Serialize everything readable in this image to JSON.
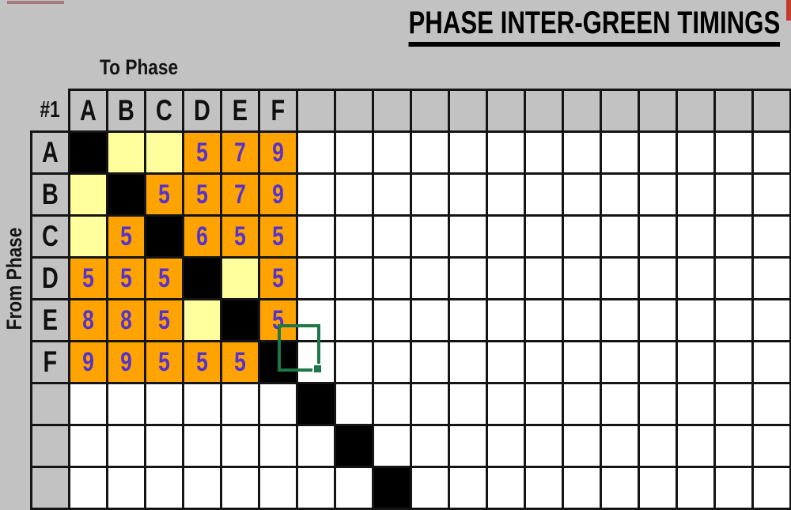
{
  "header": {
    "title": "PHASE INTER-GREEN TIMINGS"
  },
  "labels": {
    "to_phase": "To Phase",
    "from_phase": "From Phase",
    "corner": "#1"
  },
  "phases": [
    "A",
    "B",
    "C",
    "D",
    "E",
    "F"
  ],
  "grid": {
    "data_columns": 21,
    "data_rows": 9
  },
  "matrix": {
    "cell_codes": {
      "X": "same-phase diagonal (black cell)",
      "-": "no value (yellow cell)"
    },
    "rows": [
      {
        "from": "A",
        "values": [
          "X",
          "-",
          "-",
          "5",
          "7",
          "9"
        ]
      },
      {
        "from": "B",
        "values": [
          "-",
          "X",
          "5",
          "5",
          "7",
          "9"
        ]
      },
      {
        "from": "C",
        "values": [
          "-",
          "5",
          "X",
          "6",
          "5",
          "5"
        ]
      },
      {
        "from": "D",
        "values": [
          "5",
          "5",
          "5",
          "X",
          "-",
          "5"
        ]
      },
      {
        "from": "E",
        "values": [
          "8",
          "8",
          "5",
          "-",
          "X",
          "5"
        ]
      },
      {
        "from": "F",
        "values": [
          "9",
          "9",
          "5",
          "5",
          "5",
          "X"
        ]
      }
    ]
  },
  "selection": {
    "active_cell": "row F, first unlabeled column (7th data column)",
    "has_fill_handle": true
  },
  "colors": {
    "background": "#C2C2C2",
    "header_fill": "#C2C2C2",
    "value_fill": "#FFA300",
    "blank_pair_fill": "#FFFF9E",
    "diagonal_fill": "#000000",
    "value_text": "#5533CC",
    "grid_line": "#141414",
    "selection_green": "#1E7747",
    "annotation_red": "#C23B2E"
  }
}
